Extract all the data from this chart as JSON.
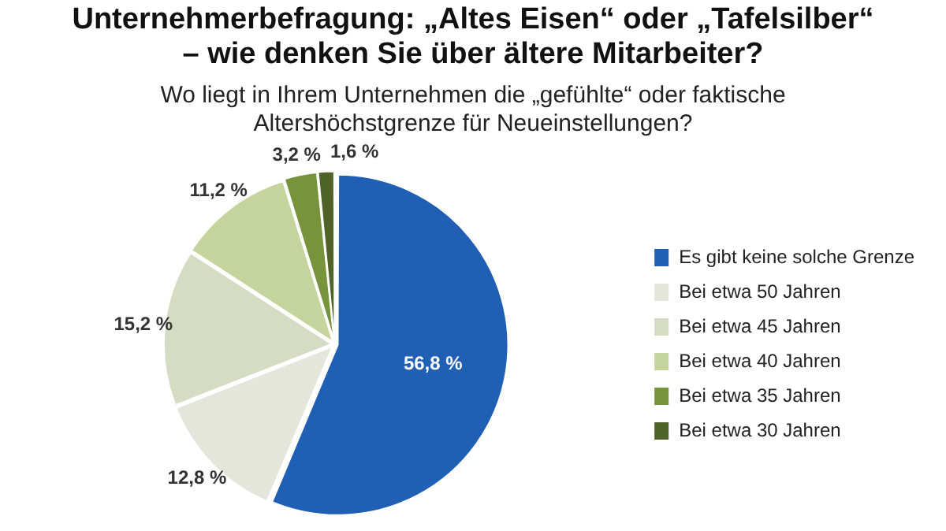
{
  "chart_data": {
    "type": "pie",
    "title": "Unternehmerbefragung: „Altes Eisen“ oder „Tafelsilber“ – wie denken Sie über ältere Mitarbeiter?",
    "subtitle": "Wo liegt in Ihrem Unternehmen die „gefühlte“ oder faktische Altershöchstgrenze für Neueinstellungen?",
    "categories": [
      "Es gibt keine solche Grenze",
      "Bei etwa 50 Jahren",
      "Bei etwa 45 Jahren",
      "Bei etwa 40 Jahren",
      "Bei etwa 35 Jahren",
      "Bei etwa 30 Jahren"
    ],
    "values": [
      56.8,
      12.8,
      15.2,
      11.2,
      3.2,
      1.6
    ],
    "colors": [
      "#1f5fb4",
      "#e4e6dc",
      "#d6dcc4",
      "#c4d49c",
      "#77933c",
      "#4f6228"
    ],
    "value_labels": [
      "56,8 %",
      "12,8 %",
      "15,2 %",
      "11,2 %",
      "3,2 %",
      "1,6 %"
    ],
    "legend": "right"
  }
}
